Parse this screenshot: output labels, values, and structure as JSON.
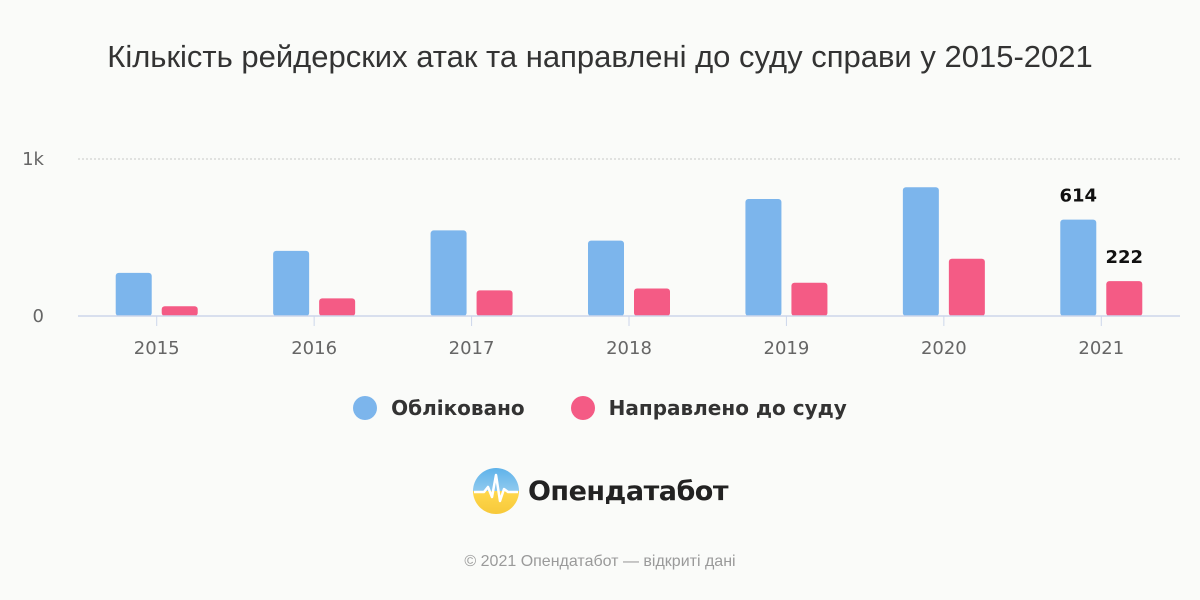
{
  "chart_data": {
    "type": "bar",
    "title": "Кількість рейдерских атак та направлені до суду справи у 2015-2021",
    "categories": [
      "2015",
      "2016",
      "2017",
      "2018",
      "2019",
      "2020",
      "2021"
    ],
    "series": [
      {
        "name": "Обліковано",
        "color": "#7cb5ec",
        "values": [
          275,
          415,
          545,
          480,
          745,
          820,
          614
        ]
      },
      {
        "name": "Направлено до суду",
        "color": "#f45b85",
        "values": [
          62,
          112,
          163,
          175,
          212,
          365,
          222
        ]
      }
    ],
    "data_labels": [
      {
        "series": 0,
        "category": "2021",
        "text": "614"
      },
      {
        "series": 1,
        "category": "2021",
        "text": "222"
      }
    ],
    "yaxis": {
      "ticks": [
        {
          "value": 0,
          "label": "0"
        },
        {
          "value": 1000,
          "label": "1k"
        }
      ]
    },
    "ylim": [
      0,
      1000
    ],
    "grid": true,
    "legend_position": "bottom"
  },
  "legend": {
    "items": [
      {
        "label": "Обліковано",
        "color": "#7cb5ec"
      },
      {
        "label": "Направлено до суду",
        "color": "#f45b85"
      }
    ]
  },
  "brand": {
    "name": "Опендатабот"
  },
  "footer": {
    "text": "© 2021 Опендатабот — відкриті дані"
  }
}
